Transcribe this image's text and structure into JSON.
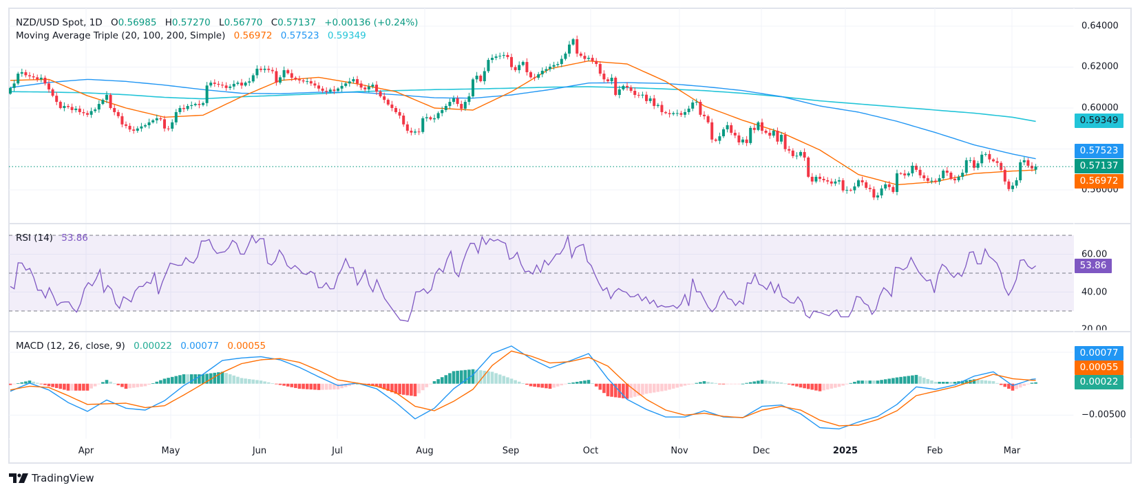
{
  "header": {
    "symbol": "NZD/USD Spot, 1D",
    "o_label": "O",
    "open": "0.56985",
    "h_label": "H",
    "high": "0.57270",
    "l_label": "L",
    "low": "0.56770",
    "c_label": "C",
    "close": "0.57137",
    "change": "+0.00136 (+0.24%)"
  },
  "ma_legend": {
    "title": "Moving Average Triple (20, 100, 200, Simple)",
    "v20": "0.56972",
    "v100": "0.57523",
    "v200": "0.59349"
  },
  "rsi_legend": {
    "title": "RSI (14)",
    "value": "53.86"
  },
  "macd_legend": {
    "title": "MACD (12, 26, close, 9)",
    "hist": "0.00022",
    "macd": "0.00077",
    "signal": "0.00055"
  },
  "price_axis": {
    "ticks": [
      "0.64000",
      "0.62000",
      "0.60000",
      "0.56000"
    ]
  },
  "price_tags": {
    "ma200": "0.59349",
    "ma100": "0.57523",
    "last": "0.57137",
    "ma20": "0.56972"
  },
  "rsi_axis": {
    "ticks": [
      "60.00",
      "40.00",
      "20.00"
    ],
    "tag": "53.86"
  },
  "macd_axis": {
    "ticks": [
      "−0.00500"
    ],
    "tags": {
      "macd": "0.00077",
      "signal": "0.00055",
      "hist": "0.00022"
    }
  },
  "time_axis": {
    "labels": [
      "Apr",
      "May",
      "Jun",
      "Jul",
      "Aug",
      "Sep",
      "Oct",
      "Nov",
      "Dec",
      "2025",
      "Feb",
      "Mar"
    ]
  },
  "footer": {
    "logo_text": "TradingView"
  },
  "colors": {
    "up": "#089981",
    "down": "#f23645",
    "ma20": "#ff6d00",
    "ma100": "#2196f3",
    "ma200": "#22c4d8",
    "rsi": "#7e57c2",
    "macd": "#2196f3",
    "signal": "#ff6d00",
    "hist_up_strong": "#26a69a",
    "hist_up_weak": "#b2dfdb",
    "hist_down_strong": "#ff5252",
    "hist_down_weak": "#ffcdd2",
    "grid": "#f0f3fa",
    "border": "#e0e3eb",
    "text": "#131722"
  },
  "chart_data": {
    "type": "candlestick",
    "symbol": "NZD/USD Spot",
    "interval": "1D",
    "price_range": [
      0.5435,
      0.6484
    ],
    "grid": true,
    "first_open": 0.607,
    "last_candle": {
      "o": 0.56985,
      "h": 0.5727,
      "l": 0.5677,
      "c": 0.57137
    },
    "closes": [
      0.6098,
      0.612,
      0.6168,
      0.6175,
      0.616,
      0.6155,
      0.615,
      0.614,
      0.6148,
      0.612,
      0.6091,
      0.606,
      0.603,
      0.6,
      0.601,
      0.6005,
      0.599,
      0.5997,
      0.598,
      0.5975,
      0.5967,
      0.5985,
      0.5993,
      0.602,
      0.604,
      0.6064,
      0.6,
      0.598,
      0.596,
      0.592,
      0.5913,
      0.5895,
      0.5889,
      0.59,
      0.591,
      0.5916,
      0.593,
      0.594,
      0.595,
      0.5945,
      0.59,
      0.5899,
      0.593,
      0.598,
      0.6,
      0.5995,
      0.601,
      0.6014,
      0.602,
      0.6015,
      0.6024,
      0.611,
      0.6124,
      0.6118,
      0.6114,
      0.611,
      0.6098,
      0.6105,
      0.6118,
      0.6124,
      0.611,
      0.6124,
      0.613,
      0.616,
      0.6192,
      0.6186,
      0.6192,
      0.6186,
      0.618,
      0.6124,
      0.615,
      0.6185,
      0.617,
      0.6148,
      0.614,
      0.6135,
      0.613,
      0.6131,
      0.612,
      0.611,
      0.6095,
      0.6084,
      0.608,
      0.609,
      0.6084,
      0.6095,
      0.6108,
      0.612,
      0.613,
      0.6141,
      0.612,
      0.61,
      0.6091,
      0.6105,
      0.6114,
      0.608,
      0.6057,
      0.604,
      0.6017,
      0.6,
      0.598,
      0.5963,
      0.592,
      0.5889,
      0.588,
      0.5885,
      0.5883,
      0.595,
      0.5955,
      0.5945,
      0.595,
      0.5975,
      0.599,
      0.601,
      0.603,
      0.6047,
      0.602,
      0.5997,
      0.603,
      0.6057,
      0.614,
      0.6158,
      0.6131,
      0.618,
      0.6235,
      0.6245,
      0.6252,
      0.6255,
      0.6259,
      0.6249,
      0.62,
      0.6185,
      0.621,
      0.6225,
      0.6175,
      0.615,
      0.6148,
      0.6165,
      0.6182,
      0.619,
      0.6202,
      0.621,
      0.6215,
      0.624,
      0.6266,
      0.631,
      0.6336,
      0.6266,
      0.6255,
      0.624,
      0.6245,
      0.623,
      0.6215,
      0.6168,
      0.614,
      0.6131,
      0.6148,
      0.6064,
      0.6091,
      0.6108,
      0.6101,
      0.6084,
      0.6064,
      0.6061,
      0.6065,
      0.6034,
      0.6047,
      0.601,
      0.6015,
      0.598,
      0.5975,
      0.597,
      0.5975,
      0.5975,
      0.5967,
      0.598,
      0.5997,
      0.6027,
      0.603,
      0.5967,
      0.596,
      0.593,
      0.5846,
      0.584,
      0.5862,
      0.5896,
      0.5916,
      0.5879,
      0.5866,
      0.5832,
      0.5846,
      0.5829,
      0.5903,
      0.5893,
      0.593,
      0.5889,
      0.5879,
      0.5865,
      0.5889,
      0.5836,
      0.5869,
      0.5799,
      0.5792,
      0.5765,
      0.5767,
      0.5785,
      0.5758,
      0.5664,
      0.5641,
      0.5664,
      0.5654,
      0.5647,
      0.5641,
      0.5631,
      0.5641,
      0.5647,
      0.5597,
      0.56,
      0.5598,
      0.5617,
      0.5647,
      0.5637,
      0.561,
      0.5604,
      0.5563,
      0.5573,
      0.5607,
      0.5627,
      0.5614,
      0.559,
      0.5681,
      0.568,
      0.5671,
      0.5681,
      0.5718,
      0.5698,
      0.5671,
      0.5657,
      0.5644,
      0.5645,
      0.564,
      0.5657,
      0.5694,
      0.5684,
      0.5654,
      0.5647,
      0.5664,
      0.5684,
      0.5745,
      0.5745,
      0.5708,
      0.573,
      0.5772,
      0.5775,
      0.5749,
      0.574,
      0.5732,
      0.5698,
      0.5641,
      0.5604,
      0.5621,
      0.5647,
      0.5735,
      0.5745,
      0.5718,
      0.5705,
      0.57137
    ],
    "ma20": [
      0.6135,
      0.614,
      0.606,
      0.6,
      0.5955,
      0.5965,
      0.6055,
      0.6135,
      0.615,
      0.6118,
      0.608,
      0.6,
      0.599,
      0.608,
      0.6192,
      0.623,
      0.6215,
      0.613,
      0.601,
      0.594,
      0.588,
      0.5795,
      0.5675,
      0.5625,
      0.564,
      0.568,
      0.5692,
      0.56972
    ],
    "ma100": [
      0.61,
      0.6125,
      0.614,
      0.613,
      0.6112,
      0.609,
      0.6072,
      0.607,
      0.6077,
      0.6077,
      0.6065,
      0.605,
      0.6048,
      0.6064,
      0.609,
      0.6122,
      0.6124,
      0.612,
      0.6105,
      0.6085,
      0.6056,
      0.601,
      0.598,
      0.5935,
      0.588,
      0.582,
      0.5775,
      0.57523
    ],
    "ma200": [
      0.608,
      0.6078,
      0.6074,
      0.6065,
      0.6052,
      0.6045,
      0.6055,
      0.6062,
      0.607,
      0.608,
      0.6085,
      0.609,
      0.6093,
      0.6097,
      0.6102,
      0.6104,
      0.61,
      0.6093,
      0.6085,
      0.6072,
      0.6055,
      0.6035,
      0.602,
      0.6005,
      0.599,
      0.5975,
      0.5955,
      0.59349
    ],
    "rsi_levels": [
      70,
      50,
      30
    ],
    "rsi_range": [
      19.1,
      76.2
    ],
    "rsi": [
      43,
      41.7,
      55.5,
      55.3,
      51.6,
      52.5,
      47.7,
      41,
      41,
      36.9,
      42.3,
      38,
      32.9,
      34.5,
      34.8,
      34.8,
      31.4,
      29.4,
      33.9,
      41.7,
      45,
      43.3,
      46.9,
      51.9,
      39.9,
      43.5,
      41.4,
      33.9,
      31.4,
      37.5,
      36.3,
      34.8,
      40.5,
      42.9,
      43,
      45.3,
      44.5,
      50.1,
      38.9,
      45.3,
      50.3,
      55.3,
      54.7,
      54.1,
      54.2,
      58.2,
      56.1,
      55.3,
      58.6,
      67,
      67,
      67.8,
      63,
      60.4,
      61,
      61.3,
      63.4,
      67.3,
      65.8,
      60.1,
      60,
      64.6,
      69.8,
      66,
      68.2,
      68.2,
      55.3,
      54.3,
      56.5,
      62.2,
      59.2,
      54,
      52.3,
      54,
      52.2,
      49.8,
      49.3,
      51,
      49.8,
      42.3,
      42.4,
      44.9,
      41.7,
      41.8,
      48.6,
      52.2,
      57.7,
      52.9,
      52.9,
      43.7,
      47.1,
      51.6,
      43.7,
      40.1,
      46.5,
      41.5,
      36.6,
      33.7,
      30.8,
      28,
      25.2,
      25,
      24.5,
      30.8,
      40.1,
      40.2,
      41.7,
      39.3,
      41.3,
      49.8,
      52.5,
      50.5,
      57.3,
      61.6,
      50.5,
      48.1,
      55.5,
      61.3,
      65.8,
      65.7,
      60.6,
      69.2,
      65.2,
      68.2,
      67,
      67.8,
      66.6,
      65.8,
      57.3,
      58.2,
      61,
      54.6,
      50.7,
      51.1,
      49.5,
      54.3,
      50.4,
      56.8,
      54.3,
      57.1,
      60.1,
      60.1,
      63.4,
      69.4,
      58.2,
      63.4,
      64.6,
      65.2,
      56.1,
      54,
      48.9,
      44.5,
      40.8,
      42.3,
      36.5,
      40.1,
      41.9,
      40.5,
      39.9,
      37.5,
      37.6,
      38.9,
      35.4,
      37.5,
      33.9,
      35.7,
      32,
      32.9,
      32.1,
      32.3,
      32.9,
      31.4,
      33.6,
      38.7,
      32.7,
      47.1,
      40.1,
      40.1,
      35.9,
      32,
      29.6,
      32,
      37.7,
      40.5,
      36.6,
      36,
      32.9,
      35.3,
      33.6,
      44.9,
      44.5,
      49.5,
      44.1,
      43.3,
      41.3,
      45.3,
      39.6,
      44.1,
      37.5,
      36.3,
      34.5,
      34.1,
      37.5,
      34.7,
      27.8,
      26.3,
      30,
      29.4,
      29,
      28.1,
      27.5,
      29.6,
      30.6,
      26.9,
      26.9,
      26.9,
      30.8,
      37.7,
      37.2,
      34.1,
      33,
      28.2,
      30.8,
      38,
      42.3,
      40.5,
      37.7,
      53.1,
      52.8,
      51.7,
      53.1,
      58.3,
      54.3,
      50.5,
      48.1,
      45.9,
      46.5,
      39.6,
      49.8,
      54.7,
      53.1,
      49.8,
      47.7,
      50.1,
      48.3,
      53.4,
      61,
      61.3,
      54.9,
      54.9,
      62.8,
      58.9,
      57.3,
      55.3,
      50.7,
      42.3,
      38.3,
      41.7,
      46.7,
      56.8,
      57.1,
      53.7,
      52.3,
      53.86
    ],
    "macd_range": [
      -0.0088,
      0.0083
    ],
    "macd": [
      -0.0012,
      0.0001,
      -0.001,
      -0.003,
      -0.0044,
      -0.0026,
      -0.0039,
      -0.0042,
      -0.0027,
      -0.0003,
      0.0015,
      0.0037,
      0.0041,
      0.0043,
      0.0038,
      0.0026,
      0.0011,
      -0.0003,
      0.0001,
      -0.0008,
      -0.003,
      -0.0056,
      -0.0039,
      -0.0008,
      0.0014,
      0.0048,
      0.006,
      0.004,
      0.0025,
      0.0036,
      0.0048,
      0.0008,
      -0.0025,
      -0.0041,
      -0.0053,
      -0.0053,
      -0.0043,
      -0.0053,
      -0.0054,
      -0.0036,
      -0.0034,
      -0.0048,
      -0.007,
      -0.0072,
      -0.0061,
      -0.0052,
      -0.0033,
      -0.0005,
      -0.0009,
      -0.0002,
      0.0012,
      0.0019,
      -0.0003,
      0.0007,
      0.00077
    ],
    "signal": [
      -0.001,
      -0.0004,
      -0.0006,
      -0.0019,
      -0.0033,
      -0.0032,
      -0.0031,
      -0.0038,
      -0.0035,
      -0.0018,
      0.0,
      0.0018,
      0.0032,
      0.0038,
      0.004,
      0.0034,
      0.0021,
      0.0006,
      0.0001,
      -0.0004,
      -0.0014,
      -0.0036,
      -0.0043,
      -0.0028,
      -0.0009,
      0.0029,
      0.0052,
      0.0044,
      0.0033,
      0.0035,
      0.0042,
      0.0028,
      -0.0001,
      -0.0025,
      -0.0042,
      -0.005,
      -0.0047,
      -0.0052,
      -0.0054,
      -0.0042,
      -0.0036,
      -0.0042,
      -0.0058,
      -0.0067,
      -0.0066,
      -0.0057,
      -0.0043,
      -0.0019,
      -0.0012,
      -0.0005,
      0.0005,
      0.0015,
      0.0008,
      0.00055,
      0.00055
    ]
  }
}
